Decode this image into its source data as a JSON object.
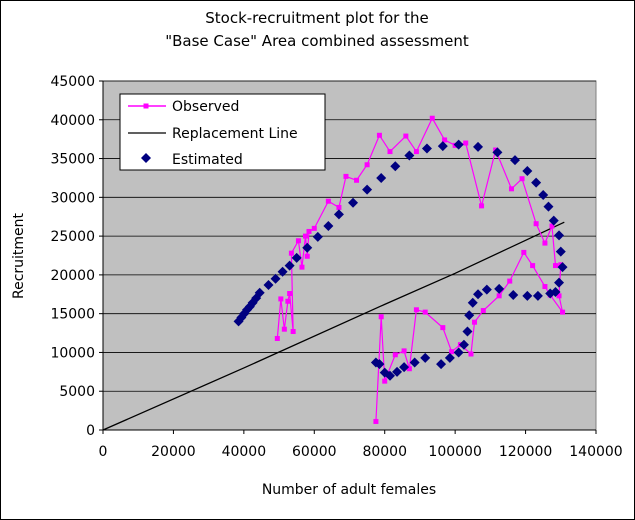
{
  "chart_data": {
    "type": "scatter",
    "title_lines": [
      "Stock-recruitment plot for the",
      "\"Base Case\" Area combined assessment"
    ],
    "xlabel": "Number of adult females",
    "ylabel": "Recruitment",
    "xlim": [
      0,
      140000
    ],
    "ylim": [
      0,
      45000
    ],
    "x_ticks": [
      "0",
      "20000",
      "40000",
      "60000",
      "80000",
      "100000",
      "120000",
      "140000"
    ],
    "y_ticks": [
      "0",
      "5000",
      "10000",
      "15000",
      "20000",
      "25000",
      "30000",
      "35000",
      "40000",
      "45000"
    ],
    "plot_background": "#c0c0c0",
    "grid": "horizontal",
    "legend_position": "top-left",
    "legend": {
      "observed": "Observed",
      "replacement": "Replacement Line",
      "estimated": "Estimated"
    },
    "colors": {
      "observed": "#ff00ff",
      "replacement": "#000000",
      "estimated": "#000080"
    },
    "series": [
      {
        "name": "Observed",
        "kind": "line-markers",
        "points": [
          [
            49500,
            11800
          ],
          [
            50500,
            16900
          ],
          [
            51500,
            13000
          ],
          [
            52500,
            16600
          ],
          [
            53000,
            17600
          ],
          [
            54000,
            12700
          ],
          [
            53500,
            22800
          ],
          [
            55500,
            24400
          ],
          [
            56500,
            21000
          ],
          [
            57500,
            25000
          ],
          [
            58000,
            22400
          ],
          [
            58500,
            25600
          ],
          [
            60000,
            26000
          ],
          [
            64000,
            29500
          ],
          [
            67000,
            28700
          ],
          [
            69000,
            32700
          ],
          [
            72000,
            32200
          ],
          [
            75000,
            34200
          ],
          [
            78500,
            38000
          ],
          [
            81500,
            35900
          ],
          [
            86000,
            37900
          ],
          [
            89000,
            35900
          ],
          [
            93500,
            40200
          ],
          [
            97000,
            37400
          ],
          [
            100000,
            36700
          ],
          [
            103000,
            37000
          ],
          [
            107500,
            28900
          ],
          [
            111500,
            36100
          ],
          [
            116000,
            31100
          ],
          [
            119000,
            32400
          ],
          [
            123000,
            26600
          ],
          [
            125500,
            24100
          ],
          [
            127500,
            26300
          ],
          [
            128500,
            21200
          ],
          [
            130000,
            21300
          ],
          [
            129500,
            17300
          ],
          [
            130500,
            15200
          ],
          [
            127000,
            17400
          ],
          [
            125500,
            18500
          ],
          [
            122000,
            21200
          ],
          [
            119500,
            22900
          ],
          [
            115500,
            19200
          ],
          [
            112500,
            17300
          ],
          [
            108000,
            15400
          ],
          [
            105500,
            13900
          ],
          [
            104500,
            9800
          ],
          [
            101500,
            11000
          ],
          [
            99000,
            10100
          ],
          [
            96500,
            13200
          ],
          [
            91500,
            15200
          ],
          [
            89000,
            15500
          ],
          [
            87000,
            7900
          ],
          [
            85500,
            10200
          ],
          [
            83000,
            9700
          ],
          [
            80000,
            6300
          ],
          [
            79000,
            14600
          ],
          [
            77500,
            1100
          ]
        ]
      },
      {
        "name": "Replacement Line",
        "kind": "line",
        "points": [
          [
            0,
            0
          ],
          [
            40000,
            8000
          ],
          [
            80000,
            16200
          ],
          [
            100000,
            20200
          ],
          [
            131000,
            26800
          ]
        ]
      },
      {
        "name": "Estimated",
        "kind": "markers",
        "points": [
          [
            38500,
            14000
          ],
          [
            39300,
            14500
          ],
          [
            40100,
            15000
          ],
          [
            40900,
            15500
          ],
          [
            41700,
            15900
          ],
          [
            42500,
            16400
          ],
          [
            43500,
            17000
          ],
          [
            44500,
            17700
          ],
          [
            47000,
            18700
          ],
          [
            49000,
            19500
          ],
          [
            51000,
            20400
          ],
          [
            53000,
            21200
          ],
          [
            55000,
            22200
          ],
          [
            58000,
            23500
          ],
          [
            61000,
            24900
          ],
          [
            64000,
            26300
          ],
          [
            67000,
            27800
          ],
          [
            71000,
            29300
          ],
          [
            75000,
            31000
          ],
          [
            79000,
            32500
          ],
          [
            83000,
            34000
          ],
          [
            87000,
            35400
          ],
          [
            92000,
            36300
          ],
          [
            96500,
            36600
          ],
          [
            101000,
            36800
          ],
          [
            106500,
            36500
          ],
          [
            112000,
            35800
          ],
          [
            117000,
            34800
          ],
          [
            120500,
            33400
          ],
          [
            123000,
            31900
          ],
          [
            125000,
            30300
          ],
          [
            126500,
            28800
          ],
          [
            128000,
            27000
          ],
          [
            129500,
            25100
          ],
          [
            130000,
            23000
          ],
          [
            130500,
            21000
          ],
          [
            129500,
            19000
          ],
          [
            128500,
            17800
          ],
          [
            127000,
            17600
          ],
          [
            123500,
            17300
          ],
          [
            120500,
            17300
          ],
          [
            116500,
            17400
          ],
          [
            112500,
            18200
          ],
          [
            109000,
            18100
          ],
          [
            106500,
            17500
          ],
          [
            105000,
            16400
          ],
          [
            104000,
            14800
          ],
          [
            103500,
            12700
          ],
          [
            102500,
            11000
          ],
          [
            101000,
            10000
          ],
          [
            98500,
            9300
          ],
          [
            96000,
            8500
          ],
          [
            91500,
            9300
          ],
          [
            88500,
            8700
          ],
          [
            85500,
            8100
          ],
          [
            83500,
            7500
          ],
          [
            81500,
            7000
          ],
          [
            80000,
            7400
          ],
          [
            78500,
            8500
          ],
          [
            77500,
            8700
          ]
        ]
      }
    ]
  }
}
